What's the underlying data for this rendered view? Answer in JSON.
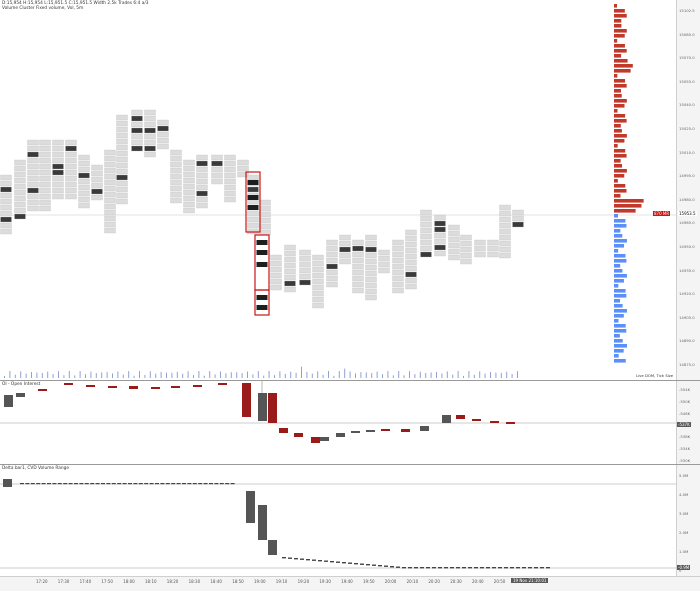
{
  "header": {
    "main_line1": "D:15,954 H:15,954 L:15,951.5 C:15,951.5  Width  2.5k  Trades 6:4 a/3",
    "main_line2": "Volume Cluster Fixed volume, Vol, 5m",
    "oi_title": "OI - Open Interest",
    "delta_title": "Delta bar1, CVD Volume Range"
  },
  "time_axis": {
    "labels": [
      "17:20",
      "17:30",
      "17:40",
      "17:50",
      "18:00",
      "18:10",
      "18:20",
      "18:30",
      "18:40",
      "18:50",
      "19:00",
      "19:10",
      "19:20",
      "19:30",
      "19:40",
      "19:50",
      "20:00",
      "20:10",
      "20:20",
      "20:30",
      "20:40",
      "20:50",
      "21:00"
    ],
    "current_label": "19 Nov 21:10:01"
  },
  "price_axis": {
    "ticks": [
      "15102.5",
      "15085.0",
      "15070.0",
      "15055.0",
      "15040.0",
      "15025.0",
      "15010.0",
      "14995.0",
      "14980.0",
      "14965.0",
      "14950.0",
      "14935.0",
      "14920.0",
      "14905.0",
      "14890.0",
      "14875.0"
    ],
    "current_price": "15953.5",
    "current_tag": "870 MR",
    "profile_top_label": "72K",
    "live_label": "Live DOM, Tick Size"
  },
  "oi_axis": {
    "ticks": [
      "-554K",
      "-550K",
      "-546K",
      "-542K",
      "-538K",
      "-534K",
      "-530K"
    ],
    "current": "-537K"
  },
  "delta_axis": {
    "ticks": [
      "5.0M",
      "4.0M",
      "3.0M",
      "2.0M",
      "1.0M",
      "0"
    ],
    "current": "-0.9M"
  },
  "colors": {
    "bull": "#9b1b1b",
    "bear": "#555555",
    "poc": "#cc1414",
    "profile_buy": "#c0392b",
    "profile_sell": "#5b8ff9"
  }
}
